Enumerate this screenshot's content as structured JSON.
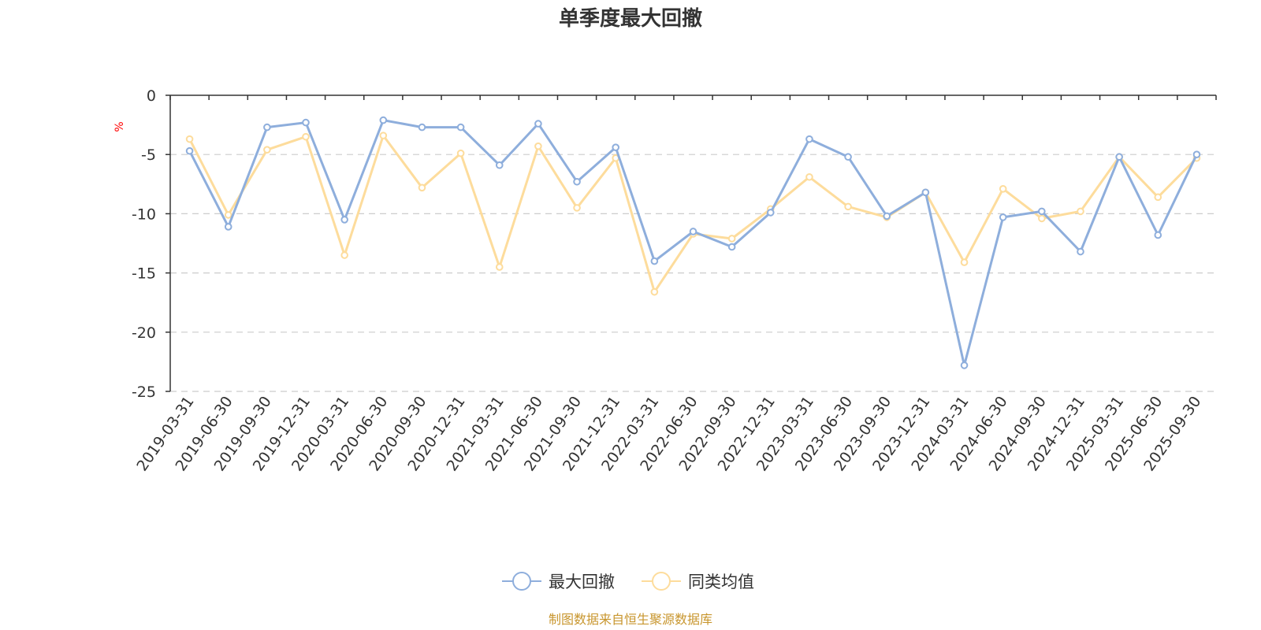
{
  "chart_data": {
    "type": "line",
    "title": "单季度最大回撤",
    "ylabel": "%",
    "ylim": [
      -25,
      0
    ],
    "yticks": [
      0,
      -5,
      -10,
      -15,
      -20,
      -25
    ],
    "grid": true,
    "legend_position": "bottom-center",
    "categories": [
      "2019-03-31",
      "2019-06-30",
      "2019-09-30",
      "2019-12-31",
      "2020-03-31",
      "2020-06-30",
      "2020-09-30",
      "2020-12-31",
      "2021-03-31",
      "2021-06-30",
      "2021-09-30",
      "2021-12-31",
      "2022-03-31",
      "2022-06-30",
      "2022-09-30",
      "2022-12-31",
      "2023-03-31",
      "2023-06-30",
      "2023-09-30",
      "2023-12-31",
      "2024-03-31",
      "2024-06-30",
      "2024-09-30",
      "2024-12-31",
      "2025-03-31",
      "2025-06-30",
      "2025-09-30"
    ],
    "series": [
      {
        "name": "最大回撤",
        "color": "#8eaedc",
        "values": [
          -4.7,
          -11.1,
          -2.7,
          -2.3,
          -10.5,
          -2.1,
          -2.7,
          -2.7,
          -5.9,
          -2.4,
          -7.3,
          -4.4,
          -14.0,
          -11.5,
          -12.8,
          -9.9,
          -3.7,
          -5.2,
          -10.2,
          -8.2,
          -22.8,
          -10.3,
          -9.8,
          -13.2,
          -5.2,
          -11.8,
          -5.0
        ]
      },
      {
        "name": "同类均值",
        "color": "#fddc9c",
        "values": [
          -3.7,
          -10.1,
          -4.6,
          -3.5,
          -13.5,
          -3.4,
          -7.8,
          -4.9,
          -14.5,
          -4.3,
          -9.5,
          -5.3,
          -16.6,
          -11.7,
          -12.1,
          -9.6,
          -6.9,
          -9.4,
          -10.3,
          -8.2,
          -14.1,
          -7.9,
          -10.4,
          -9.8,
          -5.2,
          -8.6,
          -5.3
        ]
      }
    ]
  },
  "source": "制图数据来自恒生聚源数据库"
}
